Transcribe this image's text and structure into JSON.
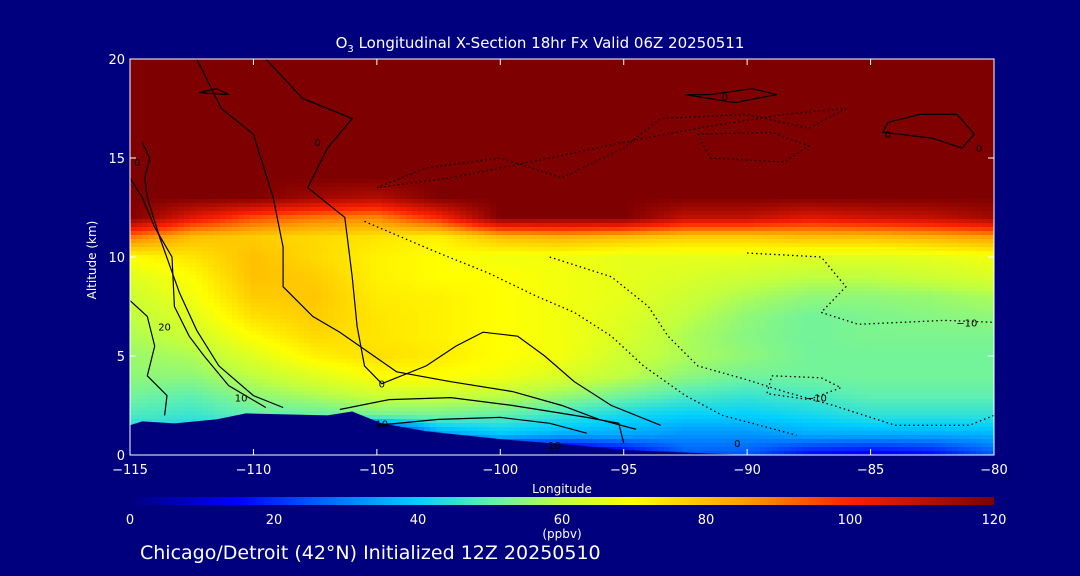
{
  "title": {
    "chem_base": "O",
    "chem_sub": "3",
    "text": " Longitudinal X-Section 18hr  Fx Valid 06Z 20250511"
  },
  "footer": "Chicago/Detroit (42°N) Initialized 12Z 20250510",
  "colors": {
    "background": "#00007f",
    "axis": "#ffffff",
    "contour": "#000000"
  },
  "chart_data": {
    "type": "heatmap",
    "xlabel": "Longitude",
    "ylabel": "Altitude (km)",
    "xlim": [
      -115,
      -80
    ],
    "ylim": [
      0,
      20
    ],
    "xticks": [
      -115,
      -110,
      -105,
      -100,
      -95,
      -90,
      -85,
      -80
    ],
    "xtick_labels": [
      "−115",
      "−110",
      "−105",
      "−100",
      "−95",
      "−90",
      "−85",
      "−80"
    ],
    "yticks": [
      0,
      5,
      10,
      15,
      20
    ],
    "ytick_labels": [
      "0",
      "5",
      "10",
      "15",
      "20"
    ],
    "colorbar": {
      "label": "(ppbv)",
      "range": [
        0,
        120
      ],
      "ticks": [
        0,
        20,
        40,
        60,
        80,
        100,
        120
      ],
      "tick_labels": [
        "0",
        "20",
        "40",
        "60",
        "80",
        "100",
        "120"
      ],
      "stops": [
        {
          "v": 0,
          "color": "#00007f"
        },
        {
          "v": 15,
          "color": "#0000ff"
        },
        {
          "v": 30,
          "color": "#0080ff"
        },
        {
          "v": 40,
          "color": "#00d0ff"
        },
        {
          "v": 50,
          "color": "#60f0b0"
        },
        {
          "v": 60,
          "color": "#c0ff40"
        },
        {
          "v": 70,
          "color": "#ffff00"
        },
        {
          "v": 85,
          "color": "#ffa000"
        },
        {
          "v": 100,
          "color": "#ff2000"
        },
        {
          "v": 120,
          "color": "#7f0000"
        }
      ]
    },
    "field_longitudes": [
      -115,
      -112.5,
      -110,
      -107.5,
      -105,
      -102.5,
      -100,
      -97.5,
      -95,
      -92.5,
      -90,
      -87.5,
      -85,
      -82.5,
      -80
    ],
    "field_altitudes": [
      0,
      1,
      2,
      3,
      4,
      5,
      6,
      7,
      8,
      9,
      10,
      11,
      12,
      13,
      14,
      16,
      18,
      20
    ],
    "field_ppbv": [
      [
        30,
        30,
        0,
        0,
        0,
        0,
        0,
        0,
        10,
        25,
        25,
        15,
        12,
        15,
        25
      ],
      [
        40,
        40,
        38,
        38,
        0,
        32,
        38,
        35,
        35,
        32,
        32,
        35,
        35,
        35,
        36
      ],
      [
        48,
        46,
        50,
        50,
        52,
        52,
        50,
        46,
        42,
        40,
        40,
        42,
        45,
        45,
        45
      ],
      [
        52,
        50,
        55,
        58,
        62,
        62,
        60,
        56,
        52,
        48,
        46,
        48,
        50,
        50,
        50
      ],
      [
        55,
        55,
        60,
        65,
        70,
        70,
        68,
        64,
        60,
        55,
        52,
        52,
        52,
        52,
        52
      ],
      [
        56,
        58,
        65,
        72,
        75,
        73,
        70,
        68,
        62,
        58,
        55,
        52,
        52,
        52,
        52
      ],
      [
        58,
        62,
        70,
        76,
        74,
        72,
        70,
        68,
        64,
        58,
        54,
        52,
        53,
        53,
        53
      ],
      [
        60,
        65,
        75,
        78,
        74,
        72,
        70,
        68,
        65,
        60,
        55,
        52,
        53,
        54,
        55
      ],
      [
        62,
        68,
        78,
        79,
        73,
        72,
        70,
        68,
        66,
        62,
        58,
        55,
        55,
        56,
        58
      ],
      [
        65,
        70,
        80,
        78,
        72,
        70,
        70,
        68,
        66,
        64,
        62,
        60,
        60,
        62,
        64
      ],
      [
        70,
        74,
        80,
        76,
        72,
        70,
        68,
        68,
        66,
        66,
        66,
        65,
        65,
        66,
        68
      ],
      [
        90,
        80,
        78,
        76,
        74,
        72,
        80,
        82,
        80,
        78,
        78,
        80,
        80,
        82,
        85
      ],
      [
        120,
        105,
        95,
        90,
        88,
        100,
        120,
        120,
        120,
        110,
        110,
        105,
        108,
        110,
        115
      ],
      [
        120,
        120,
        120,
        115,
        112,
        120,
        120,
        120,
        120,
        120,
        120,
        120,
        120,
        120,
        120
      ],
      [
        120,
        120,
        120,
        120,
        120,
        120,
        120,
        120,
        120,
        120,
        120,
        120,
        120,
        120,
        120
      ],
      [
        120,
        120,
        120,
        120,
        120,
        120,
        120,
        120,
        120,
        120,
        120,
        120,
        120,
        120,
        120
      ],
      [
        120,
        120,
        120,
        120,
        120,
        120,
        120,
        120,
        120,
        120,
        120,
        120,
        120,
        120,
        120
      ],
      [
        120,
        120,
        120,
        120,
        120,
        120,
        120,
        120,
        120,
        120,
        120,
        120,
        120,
        120,
        120
      ]
    ],
    "terrain": [
      {
        "lon": -115,
        "alt": 1.5
      },
      {
        "lon": -114.5,
        "alt": 1.7
      },
      {
        "lon": -113.2,
        "alt": 1.6
      },
      {
        "lon": -111.5,
        "alt": 1.8
      },
      {
        "lon": -110.3,
        "alt": 2.1
      },
      {
        "lon": -107,
        "alt": 2.0
      },
      {
        "lon": -106,
        "alt": 2.2
      },
      {
        "lon": -104.8,
        "alt": 1.6
      },
      {
        "lon": -103,
        "alt": 1.2
      },
      {
        "lon": -100,
        "alt": 0.8
      },
      {
        "lon": -97,
        "alt": 0.5
      },
      {
        "lon": -95,
        "alt": 0.25
      },
      {
        "lon": -92,
        "alt": 0.1
      },
      {
        "lon": -90,
        "alt": 0
      },
      {
        "lon": -80,
        "alt": 0
      }
    ],
    "contours": [
      {
        "style": "solid",
        "points": [
          [
            -112.3,
            20
          ],
          [
            -111.3,
            17.5
          ],
          [
            -110,
            16.2
          ],
          [
            -109.2,
            13
          ],
          [
            -108.8,
            10.5
          ],
          [
            -108.8,
            8.5
          ],
          [
            -107.6,
            7
          ],
          [
            -106.5,
            6.2
          ],
          [
            -104.2,
            4.2
          ],
          [
            -102,
            3.7
          ],
          [
            -99.5,
            3.2
          ],
          [
            -97.5,
            2.5
          ],
          [
            -96,
            1.8
          ],
          [
            -94.5,
            1.3
          ]
        ]
      },
      {
        "style": "solid",
        "points": [
          [
            -109.5,
            20
          ],
          [
            -108,
            18
          ],
          [
            -106,
            17
          ],
          [
            -107,
            15.5
          ],
          [
            -107.8,
            13.5
          ],
          [
            -106.3,
            12
          ],
          [
            -106,
            9
          ],
          [
            -105.8,
            6.5
          ],
          [
            -105.5,
            4.5
          ],
          [
            -104.8,
            3.6
          ],
          [
            -103,
            4.5
          ],
          [
            -101.8,
            5.5
          ],
          [
            -100.7,
            6.2
          ],
          [
            -99.3,
            6
          ],
          [
            -98.2,
            5
          ],
          [
            -97,
            3.7
          ],
          [
            -95.5,
            2.5
          ],
          [
            -93.5,
            1.5
          ]
        ]
      },
      {
        "style": "solid",
        "points": [
          [
            -115,
            14
          ],
          [
            -114.5,
            13
          ],
          [
            -114,
            11.5
          ],
          [
            -113.3,
            10
          ],
          [
            -113.2,
            7.5
          ],
          [
            -112.6,
            6
          ],
          [
            -112,
            5
          ],
          [
            -111,
            3.5
          ],
          [
            -109.5,
            2.4
          ]
        ]
      },
      {
        "style": "solid",
        "points": [
          [
            -114.5,
            15.8
          ],
          [
            -114.2,
            15
          ],
          [
            -114.4,
            14
          ],
          [
            -114.3,
            13
          ],
          [
            -113.8,
            11
          ],
          [
            -113,
            8.2
          ],
          [
            -112.3,
            6.3
          ],
          [
            -111.4,
            4.5
          ],
          [
            -110,
            3
          ],
          [
            -108.8,
            2.4
          ]
        ]
      },
      {
        "style": "solid",
        "points": [
          [
            -115,
            7.8
          ],
          [
            -114.3,
            7
          ],
          [
            -114,
            5.5
          ],
          [
            -114.3,
            4
          ],
          [
            -113.5,
            3
          ],
          [
            -113.6,
            2
          ]
        ]
      },
      {
        "style": "solid",
        "points": [
          [
            -106.5,
            2.3
          ],
          [
            -104.5,
            2.8
          ],
          [
            -102,
            2.9
          ],
          [
            -99.5,
            2.5
          ],
          [
            -98,
            2.2
          ],
          [
            -96.5,
            1.9
          ],
          [
            -95.2,
            1.6
          ],
          [
            -95,
            0.6
          ]
        ]
      },
      {
        "style": "solid",
        "points": [
          [
            -105,
            1.5
          ],
          [
            -102.5,
            1.8
          ],
          [
            -100,
            1.9
          ],
          [
            -98,
            1.6
          ],
          [
            -96.5,
            1.1
          ]
        ]
      },
      {
        "style": "solid",
        "points": [
          [
            -91.5,
            18.2
          ],
          [
            -89.8,
            18.5
          ],
          [
            -88.8,
            18.2
          ],
          [
            -90.5,
            17.8
          ],
          [
            -92.5,
            18.2
          ],
          [
            -91.5,
            18.2
          ]
        ]
      },
      {
        "style": "solid",
        "points": [
          [
            -84.3,
            16.8
          ],
          [
            -83,
            17.2
          ],
          [
            -81.5,
            17.2
          ],
          [
            -80.8,
            16.2
          ],
          [
            -81.3,
            15.5
          ],
          [
            -82.5,
            16
          ],
          [
            -84.5,
            16.3
          ],
          [
            -84.3,
            16.8
          ]
        ]
      },
      {
        "style": "solid",
        "points": [
          [
            -112.2,
            18.3
          ],
          [
            -111.5,
            18.5
          ],
          [
            -111,
            18.2
          ],
          [
            -112.2,
            18.3
          ]
        ]
      },
      {
        "style": "dotted",
        "points": [
          [
            -105.5,
            11.8
          ],
          [
            -104,
            11
          ],
          [
            -102.5,
            10.2
          ],
          [
            -100.5,
            9.2
          ],
          [
            -98.5,
            8
          ],
          [
            -97,
            7.2
          ],
          [
            -95.5,
            6
          ],
          [
            -94.2,
            4.5
          ],
          [
            -92.5,
            3
          ],
          [
            -91,
            2
          ],
          [
            -88,
            1
          ]
        ]
      },
      {
        "style": "dotted",
        "points": [
          [
            -98,
            10
          ],
          [
            -95.5,
            9
          ],
          [
            -94,
            7.5
          ],
          [
            -93.2,
            6
          ],
          [
            -92,
            4.5
          ],
          [
            -90,
            3.8
          ],
          [
            -88.5,
            3.2
          ],
          [
            -86.5,
            2.5
          ],
          [
            -84,
            1.5
          ],
          [
            -81,
            1.5
          ],
          [
            -80,
            2
          ]
        ]
      },
      {
        "style": "dotted",
        "points": [
          [
            -89,
            4
          ],
          [
            -87,
            3.9
          ],
          [
            -86.2,
            3.4
          ],
          [
            -87.5,
            2.8
          ],
          [
            -89.2,
            3.1
          ],
          [
            -89,
            4
          ]
        ]
      },
      {
        "style": "dotted",
        "points": [
          [
            -90,
            10.2
          ],
          [
            -87,
            10
          ],
          [
            -86,
            8.5
          ],
          [
            -87,
            7.2
          ],
          [
            -85.5,
            6.6
          ],
          [
            -82,
            6.8
          ],
          [
            -80,
            6.7
          ]
        ]
      },
      {
        "style": "dotted",
        "points": [
          [
            -105,
            13.5
          ],
          [
            -103,
            14.5
          ],
          [
            -100,
            15
          ],
          [
            -97.5,
            14
          ],
          [
            -95,
            15.5
          ],
          [
            -93.5,
            17
          ],
          [
            -90,
            17.2
          ],
          [
            -87.5,
            16.5
          ],
          [
            -86,
            17.5
          ],
          [
            -88.5,
            17.2
          ],
          [
            -92,
            16.5
          ],
          [
            -95,
            15.8
          ],
          [
            -98,
            15
          ],
          [
            -102,
            14
          ],
          [
            -105,
            13.5
          ]
        ]
      },
      {
        "style": "dotted",
        "points": [
          [
            -92,
            16.2
          ],
          [
            -89,
            16.3
          ],
          [
            -87.5,
            15.6
          ],
          [
            -88.5,
            14.8
          ],
          [
            -91.5,
            15
          ],
          [
            -92,
            16.2
          ]
        ]
      }
    ],
    "contour_labels": [
      {
        "lon": -90.9,
        "alt": 18.1,
        "text": "0"
      },
      {
        "lon": -84.3,
        "alt": 16.2,
        "text": "0"
      },
      {
        "lon": -80.6,
        "alt": 15.5,
        "text": "0"
      },
      {
        "lon": -107.4,
        "alt": 15.8,
        "text": "0"
      },
      {
        "lon": -114.7,
        "alt": 14.8,
        "text": "0"
      },
      {
        "lon": -113.6,
        "alt": 6.5,
        "text": "20"
      },
      {
        "lon": -110.5,
        "alt": 2.9,
        "text": "10"
      },
      {
        "lon": -104.8,
        "alt": 3.6,
        "text": "0"
      },
      {
        "lon": -104.8,
        "alt": 1.6,
        "text": "10"
      },
      {
        "lon": -97.8,
        "alt": 0.5,
        "text": "10"
      },
      {
        "lon": -90.4,
        "alt": 0.6,
        "text": "0"
      },
      {
        "lon": -87.2,
        "alt": 2.9,
        "text": "−10"
      },
      {
        "lon": -81.1,
        "alt": 6.7,
        "text": "−10"
      }
    ]
  }
}
